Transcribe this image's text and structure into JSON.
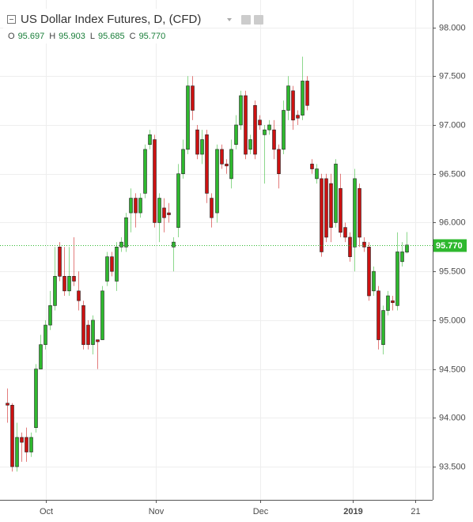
{
  "chart_data": {
    "type": "candlestick",
    "title": "US Dollar Index Futures, D, (CFD)",
    "last_value_keys": [
      "O",
      "H",
      "L",
      "C"
    ],
    "last_values": [
      95.697,
      95.903,
      95.685,
      95.77
    ],
    "last_value_labels": [
      "95.697",
      "95.903",
      "95.685",
      "95.770"
    ],
    "up_color": "#2eb82e",
    "down_color": "#cc1111",
    "last_line_color": "#2eb82e",
    "grid": true,
    "ylim": [
      93.16,
      98.28
    ],
    "yticks": [
      {
        "value": 93.5,
        "label": "93.500"
      },
      {
        "value": 94,
        "label": "94.000"
      },
      {
        "value": 94.5,
        "label": "94.500"
      },
      {
        "value": 95,
        "label": "95.000"
      },
      {
        "value": 95.5,
        "label": "95.500"
      },
      {
        "value": 96,
        "label": "96.000"
      },
      {
        "value": 96.5,
        "label": "96.500"
      },
      {
        "value": 97,
        "label": "97.000"
      },
      {
        "value": 97.5,
        "label": "97.500"
      },
      {
        "value": 98,
        "label": "98.000"
      }
    ],
    "xlim": [
      -1.5,
      89.5
    ],
    "xticks": [
      {
        "value": 8.2,
        "label": "Oct"
      },
      {
        "value": 31.2,
        "label": "Nov"
      },
      {
        "value": 53.3,
        "label": "Dec"
      },
      {
        "value": 72.7,
        "label": "2019"
      },
      {
        "value": 85.8,
        "label": "21"
      }
    ],
    "open": [
      94.15,
      94.13,
      93.5,
      93.8,
      93.8,
      93.65,
      93.9,
      94.5,
      94.75,
      94.95,
      95.15,
      95.75,
      95.45,
      95.3,
      95.45,
      95.3,
      95.15,
      94.95,
      94.75,
      94.8,
      94.8,
      95.4,
      95.65,
      95.4,
      95.75,
      95.75,
      96.1,
      96.25,
      96.1,
      96.3,
      96.8,
      96.85,
      96.0,
      96.15,
      96.1,
      95.75,
      95.95,
      96.5,
      96.75,
      97.4,
      96.95,
      96.7,
      96.9,
      96.25,
      96.1,
      96.75,
      96.6,
      96.45,
      96.8,
      97.0,
      97.3,
      96.75,
      97.2,
      97.05,
      96.9,
      96.95,
      96.95,
      96.75,
      96.75,
      97.15,
      97.35,
      97.1,
      97.1,
      97.45,
      96.6,
      96.45,
      96.45,
      96.45,
      96.4,
      96.0,
      96.35,
      95.95,
      95.85,
      95.75,
      96.35,
      95.8,
      95.75,
      95.3,
      95.3,
      94.75,
      95.1,
      95.2,
      95.15,
      95.6,
      95.697
    ],
    "high": [
      94.3,
      94.15,
      93.95,
      93.85,
      93.9,
      93.85,
      94.55,
      94.85,
      95.0,
      95.3,
      95.75,
      95.8,
      95.75,
      95.75,
      95.85,
      95.5,
      95.2,
      95.0,
      95.05,
      94.8,
      95.35,
      95.7,
      95.7,
      95.8,
      95.85,
      96.1,
      96.35,
      96.3,
      96.3,
      96.8,
      96.95,
      96.9,
      96.3,
      96.25,
      96.2,
      95.85,
      96.6,
      96.85,
      97.5,
      97.5,
      97.0,
      96.95,
      96.95,
      96.3,
      96.8,
      96.8,
      96.65,
      96.85,
      97.1,
      97.35,
      97.35,
      96.9,
      97.25,
      97.1,
      97.0,
      97.05,
      97.05,
      96.8,
      97.25,
      97.5,
      97.4,
      97.15,
      97.7,
      97.5,
      96.65,
      96.6,
      96.5,
      96.5,
      96.5,
      96.65,
      96.5,
      96.0,
      95.9,
      96.55,
      96.4,
      95.85,
      95.8,
      95.55,
      95.35,
      95.15,
      95.3,
      95.25,
      95.9,
      95.8,
      95.903
    ],
    "low": [
      93.95,
      93.45,
      93.45,
      93.55,
      93.55,
      93.6,
      93.85,
      94.5,
      94.7,
      94.9,
      95.1,
      95.4,
      95.25,
      95.25,
      95.35,
      95.1,
      94.7,
      94.7,
      94.65,
      94.5,
      94.8,
      95.35,
      95.45,
      95.3,
      95.7,
      95.7,
      95.9,
      95.95,
      96.05,
      96.25,
      96.75,
      95.95,
      95.8,
      95.9,
      96.0,
      95.5,
      95.85,
      96.45,
      96.7,
      97.05,
      96.65,
      96.6,
      96.2,
      95.95,
      96.0,
      96.55,
      96.5,
      96.35,
      96.75,
      96.95,
      96.65,
      96.7,
      96.65,
      96.95,
      96.4,
      96.9,
      96.65,
      96.35,
      96.7,
      97.05,
      96.95,
      97.0,
      97.05,
      97.15,
      96.5,
      96.4,
      95.65,
      95.8,
      95.8,
      95.95,
      95.85,
      95.8,
      95.6,
      95.5,
      95.75,
      95.7,
      95.2,
      95.25,
      94.7,
      94.65,
      95.05,
      95.1,
      95.1,
      95.55,
      95.685
    ],
    "close": [
      94.13,
      93.5,
      93.8,
      93.75,
      93.65,
      93.8,
      94.5,
      94.75,
      94.95,
      95.15,
      95.45,
      95.45,
      95.3,
      95.45,
      95.4,
      95.2,
      94.75,
      94.75,
      95.0,
      94.78,
      95.3,
      95.65,
      95.5,
      95.75,
      95.8,
      96.05,
      96.25,
      96.1,
      96.25,
      96.75,
      96.9,
      96.0,
      96.25,
      96.05,
      96.08,
      95.8,
      96.5,
      96.75,
      97.4,
      97.15,
      96.7,
      96.85,
      96.3,
      96.05,
      96.75,
      96.6,
      96.58,
      96.75,
      97.0,
      97.3,
      96.7,
      96.85,
      96.7,
      97.0,
      96.95,
      97.0,
      96.75,
      96.5,
      97.15,
      97.4,
      97.05,
      97.07,
      97.45,
      97.2,
      96.55,
      96.55,
      95.7,
      95.85,
      95.95,
      96.6,
      95.9,
      95.85,
      95.65,
      96.45,
      95.85,
      95.75,
      95.25,
      95.5,
      94.8,
      95.1,
      95.25,
      95.18,
      95.7,
      95.7,
      95.77
    ]
  }
}
